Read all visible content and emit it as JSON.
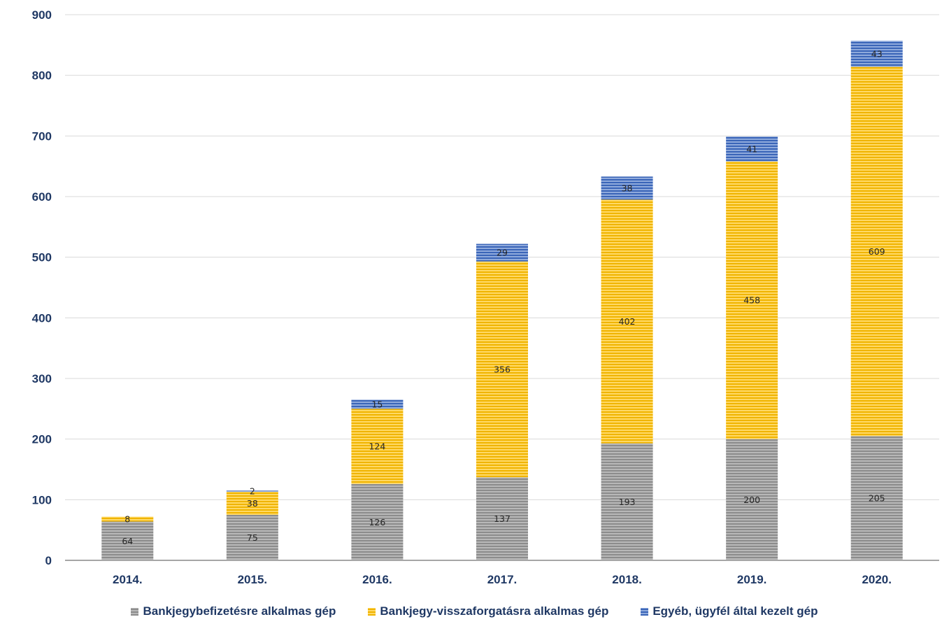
{
  "chart_data": {
    "type": "bar",
    "stacked": true,
    "categories": [
      "2014.",
      "2015.",
      "2016.",
      "2017.",
      "2018.",
      "2019.",
      "2020."
    ],
    "series": [
      {
        "name": "Bankjegybefizetésre alkalmas gép",
        "color": "#a6a6a6",
        "values": [
          64,
          75,
          126,
          137,
          193,
          200,
          205
        ]
      },
      {
        "name": "Bankjegy-visszaforgatásra alkalmas gép",
        "color": "#ffc000",
        "values": [
          8,
          38,
          124,
          356,
          402,
          458,
          609
        ]
      },
      {
        "name": "Egyéb, ügyfél által kezelt gép",
        "color": "#4472c4",
        "values": [
          null,
          2,
          15,
          29,
          38,
          41,
          43
        ]
      }
    ],
    "yticks": [
      "0",
      "100",
      "200",
      "300",
      "400",
      "500",
      "600",
      "700",
      "800",
      "900"
    ],
    "ylim": [
      0,
      900
    ],
    "grid": true,
    "legend": "bottom",
    "title": "",
    "xlabel": "",
    "ylabel": ""
  }
}
